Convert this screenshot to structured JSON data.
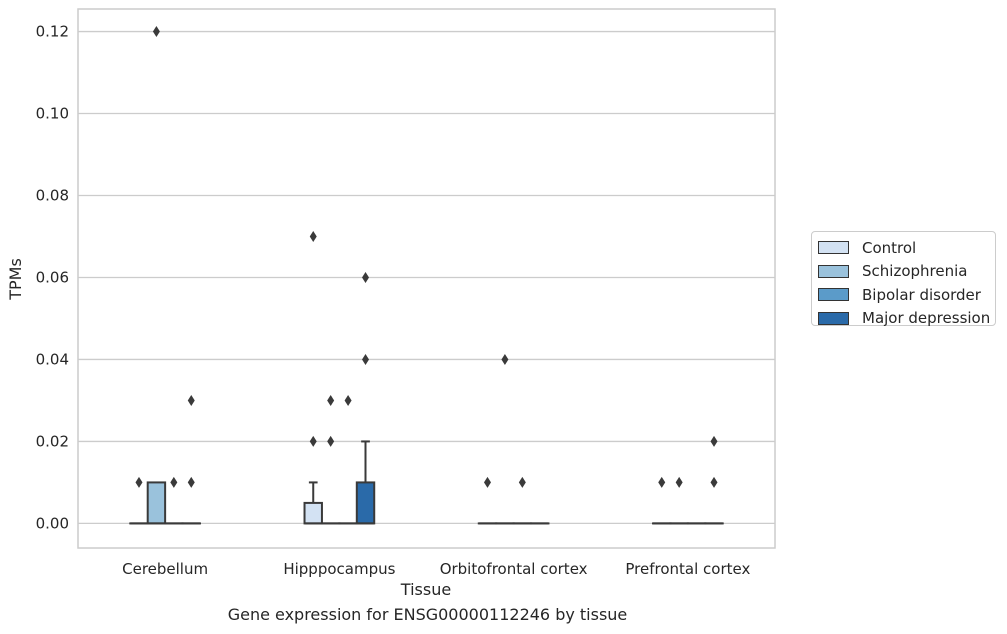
{
  "chart_data": {
    "type": "box",
    "caption": "Gene expression for ENSG00000112246 by tissue",
    "xlabel": "Tissue",
    "ylabel": "TPMs",
    "ylim": [
      -0.006,
      0.1255
    ],
    "yticks": [
      "0.00",
      "0.02",
      "0.04",
      "0.06",
      "0.08",
      "0.10",
      "0.12"
    ],
    "ytick_values": [
      0,
      0.02,
      0.04,
      0.06,
      0.08,
      0.1,
      0.12
    ],
    "grid": "horizontal",
    "legend_position": "right-outside",
    "categories": [
      "Cerebellum",
      "Hipppocampus",
      "Orbitofrontal cortex",
      "Prefrontal cortex"
    ],
    "series": [
      {
        "name": "Control",
        "color": "#d3e2f3",
        "boxes": [
          {
            "q1": 0,
            "median": 0,
            "q3": 0,
            "whisker_low": 0,
            "whisker_high": 0,
            "outliers": [
              0.01
            ]
          },
          {
            "q1": 0,
            "median": 0,
            "q3": 0.005,
            "whisker_low": 0,
            "whisker_high": 0.01,
            "outliers": [
              0.02,
              0.07
            ]
          },
          {
            "q1": 0,
            "median": 0,
            "q3": 0,
            "whisker_low": 0,
            "whisker_high": 0,
            "outliers": [
              0.01
            ]
          },
          {
            "q1": 0,
            "median": 0,
            "q3": 0,
            "whisker_low": 0,
            "whisker_high": 0,
            "outliers": [
              0.01
            ]
          }
        ]
      },
      {
        "name": "Schizophrenia",
        "color": "#9ac2dc",
        "boxes": [
          {
            "q1": 0,
            "median": 0,
            "q3": 0.01,
            "whisker_low": 0,
            "whisker_high": 0.01,
            "outliers": [
              0.12
            ]
          },
          {
            "q1": 0,
            "median": 0,
            "q3": 0,
            "whisker_low": 0,
            "whisker_high": 0,
            "outliers": [
              0.02,
              0.03
            ]
          },
          {
            "q1": 0,
            "median": 0,
            "q3": 0,
            "whisker_low": 0,
            "whisker_high": 0,
            "outliers": [
              0.04
            ]
          },
          {
            "q1": 0,
            "median": 0,
            "q3": 0,
            "whisker_low": 0,
            "whisker_high": 0,
            "outliers": [
              0.01
            ]
          }
        ]
      },
      {
        "name": "Bipolar disorder",
        "color": "#5b9bc9",
        "boxes": [
          {
            "q1": 0,
            "median": 0,
            "q3": 0,
            "whisker_low": 0,
            "whisker_high": 0,
            "outliers": [
              0.01
            ]
          },
          {
            "q1": 0,
            "median": 0,
            "q3": 0,
            "whisker_low": 0,
            "whisker_high": 0,
            "outliers": [
              0.03
            ]
          },
          {
            "q1": 0,
            "median": 0,
            "q3": 0,
            "whisker_low": 0,
            "whisker_high": 0,
            "outliers": [
              0.01
            ]
          },
          {
            "q1": 0,
            "median": 0,
            "q3": 0,
            "whisker_low": 0,
            "whisker_high": 0,
            "outliers": []
          }
        ]
      },
      {
        "name": "Major depression",
        "color": "#2a6aa9",
        "boxes": [
          {
            "q1": 0,
            "median": 0,
            "q3": 0,
            "whisker_low": 0,
            "whisker_high": 0,
            "outliers": [
              0.01,
              0.03
            ]
          },
          {
            "q1": 0,
            "median": 0,
            "q3": 0.01,
            "whisker_low": 0,
            "whisker_high": 0.02,
            "outliers": [
              0.04,
              0.06
            ]
          },
          {
            "q1": 0,
            "median": 0,
            "q3": 0,
            "whisker_low": 0,
            "whisker_high": 0,
            "outliers": []
          },
          {
            "q1": 0,
            "median": 0,
            "q3": 0,
            "whisker_low": 0,
            "whisker_high": 0,
            "outliers": [
              0.01,
              0.02
            ]
          }
        ]
      }
    ]
  }
}
